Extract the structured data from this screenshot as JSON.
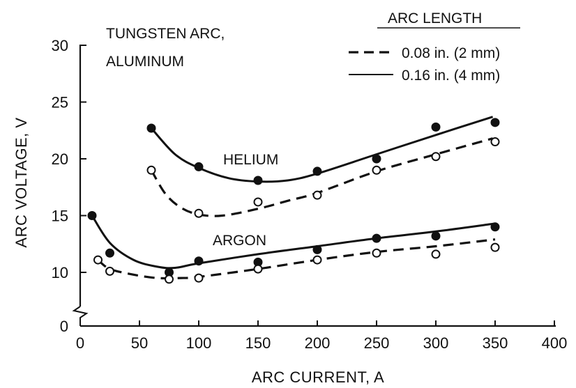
{
  "chart_data": {
    "type": "line",
    "title_lines": [
      "TUNGSTEN ARC,",
      "ALUMINUM"
    ],
    "xlabel": "ARC CURRENT, A",
    "ylabel": "ARC VOLTAGE, V",
    "xlim": [
      0,
      400
    ],
    "ylim": [
      0,
      30
    ],
    "y_axis_break": true,
    "x_ticks": [
      "0",
      "50",
      "100",
      "150",
      "200",
      "250",
      "300",
      "350",
      "400"
    ],
    "y_ticks": [
      "0",
      "10",
      "15",
      "20",
      "25",
      "30"
    ],
    "legend": {
      "title": "ARC LENGTH",
      "placement": "top-right",
      "entries": [
        {
          "label": "0.08 in. (2 mm)",
          "style": "dashed"
        },
        {
          "label": "0.16 in. (4 mm)",
          "style": "solid"
        }
      ]
    },
    "annotations": [
      "HELIUM",
      "ARGON"
    ],
    "series": [
      {
        "gas": "HELIUM",
        "arc_length": "0.16 in. (4 mm)",
        "style": "solid",
        "marker": "filled",
        "points": [
          [
            60,
            22.7
          ],
          [
            100,
            19.3
          ],
          [
            150,
            18.1
          ],
          [
            200,
            18.9
          ],
          [
            250,
            20.0
          ],
          [
            300,
            22.8
          ],
          [
            350,
            23.2
          ]
        ],
        "curve": [
          [
            60,
            22.7
          ],
          [
            80,
            20.4
          ],
          [
            100,
            19.2
          ],
          [
            125,
            18.3
          ],
          [
            150,
            18.0
          ],
          [
            175,
            18.1
          ],
          [
            200,
            18.7
          ],
          [
            250,
            20.4
          ],
          [
            300,
            22.1
          ],
          [
            348,
            23.7
          ]
        ]
      },
      {
        "gas": "HELIUM",
        "arc_length": "0.08 in. (2 mm)",
        "style": "dashed",
        "marker": "open",
        "points": [
          [
            60,
            19.0
          ],
          [
            100,
            15.2
          ],
          [
            150,
            16.2
          ],
          [
            200,
            16.8
          ],
          [
            250,
            19.0
          ],
          [
            300,
            20.2
          ],
          [
            350,
            21.5
          ]
        ],
        "curve": [
          [
            60,
            19.0
          ],
          [
            72,
            16.9
          ],
          [
            85,
            15.7
          ],
          [
            100,
            15.1
          ],
          [
            120,
            15.0
          ],
          [
            150,
            15.6
          ],
          [
            175,
            16.3
          ],
          [
            200,
            17.0
          ],
          [
            250,
            18.9
          ],
          [
            300,
            20.4
          ],
          [
            348,
            21.8
          ]
        ]
      },
      {
        "gas": "ARGON",
        "arc_length": "0.16 in. (4 mm)",
        "style": "solid",
        "marker": "filled",
        "points": [
          [
            10,
            15.0
          ],
          [
            25,
            11.7
          ],
          [
            75,
            10.0
          ],
          [
            100,
            11.0
          ],
          [
            150,
            10.9
          ],
          [
            200,
            12.0
          ],
          [
            250,
            13.0
          ],
          [
            300,
            13.2
          ],
          [
            350,
            14.0
          ]
        ],
        "curve": [
          [
            10,
            15.0
          ],
          [
            25,
            12.6
          ],
          [
            45,
            11.1
          ],
          [
            65,
            10.5
          ],
          [
            80,
            10.4
          ],
          [
            100,
            10.8
          ],
          [
            150,
            11.6
          ],
          [
            200,
            12.3
          ],
          [
            250,
            13.0
          ],
          [
            300,
            13.6
          ],
          [
            350,
            14.3
          ]
        ]
      },
      {
        "gas": "ARGON",
        "arc_length": "0.08 in. (2 mm)",
        "style": "dashed",
        "marker": "open",
        "points": [
          [
            15,
            11.1
          ],
          [
            25,
            10.1
          ],
          [
            75,
            9.4
          ],
          [
            100,
            9.5
          ],
          [
            150,
            10.3
          ],
          [
            200,
            11.1
          ],
          [
            250,
            11.7
          ],
          [
            300,
            11.6
          ],
          [
            350,
            12.2
          ]
        ],
        "curve": [
          [
            15,
            11.1
          ],
          [
            25,
            10.3
          ],
          [
            45,
            9.8
          ],
          [
            65,
            9.5
          ],
          [
            85,
            9.5
          ],
          [
            100,
            9.6
          ],
          [
            150,
            10.3
          ],
          [
            200,
            11.1
          ],
          [
            250,
            11.8
          ],
          [
            300,
            12.3
          ],
          [
            350,
            12.9
          ]
        ]
      }
    ]
  }
}
